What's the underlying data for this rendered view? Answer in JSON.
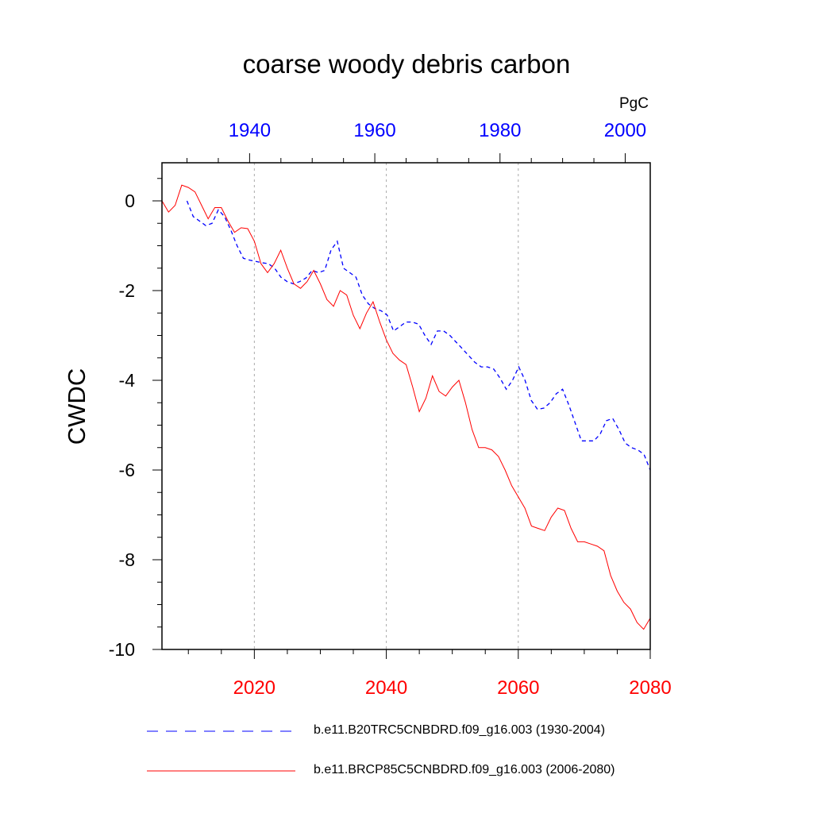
{
  "chart_data": {
    "type": "line",
    "title": "coarse woody debris carbon",
    "units": "PgC",
    "ylabel": "CWDC",
    "xlabel": "",
    "ylim": [
      -10,
      0.85
    ],
    "yticks": [
      0,
      -2,
      -4,
      -6,
      -8,
      -10
    ],
    "ytick_labels": [
      "0",
      "-2",
      "-4",
      "-6",
      "-8",
      "-10"
    ],
    "grid": "vertical dotted lines at major bottom ticks",
    "bottom_axis": {
      "range": [
        2006,
        2080
      ],
      "ticks": [
        2020,
        2040,
        2060,
        2080
      ],
      "tick_labels": [
        "2020",
        "2040",
        "2060",
        "2080"
      ],
      "color": "#ff0000"
    },
    "top_axis": {
      "range": [
        1926,
        2004
      ],
      "ticks": [
        1940,
        1960,
        1980,
        2000
      ],
      "tick_labels": [
        "1940",
        "1960",
        "1980",
        "2000"
      ],
      "color": "#0000ff"
    },
    "legend_placement": "bottom",
    "series": [
      {
        "name": "b.e11.B20TRC5CNBDRD.f09_g16.003 (1930-2004)",
        "color": "#0000ff",
        "style": "dashed",
        "axis": "top",
        "x": [
          1930,
          1931,
          1932,
          1933,
          1934,
          1935,
          1936,
          1937,
          1938,
          1939,
          1940,
          1941,
          1942,
          1943,
          1944,
          1945,
          1946,
          1947,
          1948,
          1949,
          1950,
          1951,
          1952,
          1953,
          1954,
          1955,
          1956,
          1957,
          1958,
          1959,
          1960,
          1961,
          1962,
          1963,
          1964,
          1965,
          1966,
          1967,
          1968,
          1969,
          1970,
          1971,
          1972,
          1973,
          1974,
          1975,
          1976,
          1977,
          1978,
          1979,
          1980,
          1981,
          1982,
          1983,
          1984,
          1985,
          1986,
          1987,
          1988,
          1989,
          1990,
          1991,
          1992,
          1993,
          1994,
          1995,
          1996,
          1997,
          1998,
          1999,
          2000,
          2001,
          2002,
          2003,
          2004
        ],
        "values": [
          0.0,
          -0.35,
          -0.45,
          -0.55,
          -0.5,
          -0.2,
          -0.35,
          -0.65,
          -1.0,
          -1.28,
          -1.32,
          -1.35,
          -1.38,
          -1.4,
          -1.5,
          -1.7,
          -1.8,
          -1.85,
          -1.8,
          -1.72,
          -1.55,
          -1.6,
          -1.55,
          -1.1,
          -0.9,
          -1.5,
          -1.6,
          -1.7,
          -2.1,
          -2.3,
          -2.4,
          -2.45,
          -2.55,
          -2.9,
          -2.8,
          -2.7,
          -2.7,
          -2.75,
          -3.0,
          -3.2,
          -2.9,
          -2.9,
          -3.0,
          -3.15,
          -3.3,
          -3.45,
          -3.6,
          -3.7,
          -3.7,
          -3.75,
          -3.95,
          -4.2,
          -4.0,
          -3.7,
          -4.0,
          -4.45,
          -4.65,
          -4.62,
          -4.5,
          -4.3,
          -4.2,
          -4.55,
          -4.95,
          -5.35,
          -5.35,
          -5.35,
          -5.2,
          -4.9,
          -4.85,
          -5.1,
          -5.4,
          -5.5,
          -5.55,
          -5.65,
          -6.0
        ]
      },
      {
        "name": "b.e11.BRCP85C5CNBDRD.f09_g16.003 (2006-2080)",
        "color": "#ff0000",
        "style": "solid",
        "axis": "bottom",
        "x": [
          2006,
          2007,
          2008,
          2009,
          2010,
          2011,
          2012,
          2013,
          2014,
          2015,
          2016,
          2017,
          2018,
          2019,
          2020,
          2021,
          2022,
          2023,
          2024,
          2025,
          2026,
          2027,
          2028,
          2029,
          2030,
          2031,
          2032,
          2033,
          2034,
          2035,
          2036,
          2037,
          2038,
          2039,
          2040,
          2041,
          2042,
          2043,
          2044,
          2045,
          2046,
          2047,
          2048,
          2049,
          2050,
          2051,
          2052,
          2053,
          2054,
          2055,
          2056,
          2057,
          2058,
          2059,
          2060,
          2061,
          2062,
          2063,
          2064,
          2065,
          2066,
          2067,
          2068,
          2069,
          2070,
          2071,
          2072,
          2073,
          2074,
          2075,
          2076,
          2077,
          2078,
          2079,
          2080
        ],
        "values": [
          0.0,
          -0.25,
          -0.1,
          0.35,
          0.3,
          0.2,
          -0.1,
          -0.4,
          -0.15,
          -0.15,
          -0.45,
          -0.7,
          -0.6,
          -0.62,
          -0.9,
          -1.4,
          -1.6,
          -1.4,
          -1.1,
          -1.5,
          -1.85,
          -1.95,
          -1.8,
          -1.55,
          -1.85,
          -2.2,
          -2.35,
          -2.0,
          -2.1,
          -2.55,
          -2.85,
          -2.5,
          -2.25,
          -2.7,
          -3.1,
          -3.4,
          -3.55,
          -3.65,
          -4.15,
          -4.7,
          -4.4,
          -3.9,
          -4.25,
          -4.35,
          -4.15,
          -4.0,
          -4.5,
          -5.1,
          -5.5,
          -5.5,
          -5.55,
          -5.7,
          -6.0,
          -6.35,
          -6.6,
          -6.85,
          -7.25,
          -7.3,
          -7.35,
          -7.05,
          -6.85,
          -6.9,
          -7.3,
          -7.6,
          -7.6,
          -7.65,
          -7.7,
          -7.8,
          -8.35,
          -8.7,
          -8.95,
          -9.1,
          -9.4,
          -9.55,
          -9.3
        ]
      }
    ]
  }
}
